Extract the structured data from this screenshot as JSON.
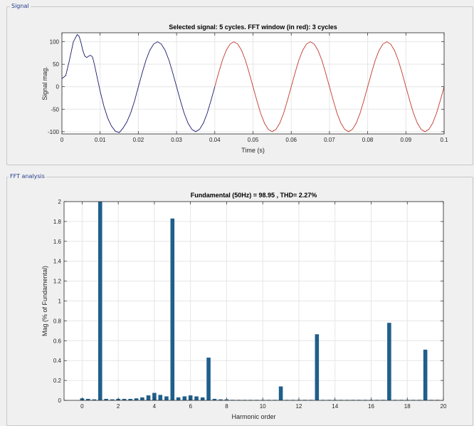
{
  "panels": {
    "signal_title": "Signal",
    "fft_title": "FFT analysis"
  },
  "chart_data": [
    {
      "type": "line",
      "title": "Selected signal: 5 cycles. FFT window (in red): 3 cycles",
      "xlabel": "Time (s)",
      "ylabel": "Signal mag.",
      "xlim": [
        0,
        0.1
      ],
      "ylim": [
        -105,
        120
      ],
      "xticks": [
        "0",
        "0.01",
        "0.02",
        "0.03",
        "0.04",
        "0.05",
        "0.06",
        "0.07",
        "0.08",
        "0.09",
        "0.1"
      ],
      "yticks": [
        "100",
        "50",
        "0",
        "-50",
        "-100"
      ],
      "grid": true,
      "series": [
        {
          "color": "#1a1a6e",
          "x": [
            0,
            0.001,
            0.002,
            0.003,
            0.004,
            0.0045,
            0.005,
            0.0055,
            0.006,
            0.0065,
            0.007,
            0.0075,
            0.008,
            0.0085,
            0.009,
            0.0095,
            0.01,
            0.011,
            0.012,
            0.013,
            0.014,
            0.015,
            0.016,
            0.017,
            0.018,
            0.019,
            0.02,
            0.021,
            0.022,
            0.023,
            0.024,
            0.025,
            0.026,
            0.027,
            0.028,
            0.029,
            0.03,
            0.031,
            0.032,
            0.033,
            0.034,
            0.035,
            0.036,
            0.037,
            0.038,
            0.039,
            0.04
          ],
          "y": [
            18,
            25,
            60,
            100,
            116,
            112,
            98,
            80,
            68,
            65,
            68,
            70,
            66,
            50,
            30,
            10,
            -10,
            -44,
            -70,
            -88,
            -99,
            -102,
            -92,
            -78,
            -58,
            -32,
            0,
            31,
            59,
            81,
            95,
            100,
            95,
            81,
            59,
            31,
            0,
            -31,
            -59,
            -81,
            -95,
            -100,
            -95,
            -81,
            -59,
            -31,
            0
          ]
        },
        {
          "color": "#c0392b",
          "x": [
            0.04,
            0.041,
            0.042,
            0.043,
            0.044,
            0.045,
            0.046,
            0.047,
            0.048,
            0.049,
            0.05,
            0.051,
            0.052,
            0.053,
            0.054,
            0.055,
            0.056,
            0.057,
            0.058,
            0.059,
            0.06,
            0.061,
            0.062,
            0.063,
            0.064,
            0.065,
            0.066,
            0.067,
            0.068,
            0.069,
            0.07,
            0.071,
            0.072,
            0.073,
            0.074,
            0.075,
            0.076,
            0.077,
            0.078,
            0.079,
            0.08,
            0.081,
            0.082,
            0.083,
            0.084,
            0.085,
            0.086,
            0.087,
            0.088,
            0.089,
            0.09,
            0.091,
            0.092,
            0.093,
            0.094,
            0.095,
            0.096,
            0.097,
            0.098,
            0.099,
            0.1
          ],
          "y": [
            0,
            31,
            59,
            81,
            95,
            100,
            95,
            81,
            59,
            31,
            0,
            -31,
            -59,
            -81,
            -95,
            -100,
            -95,
            -81,
            -59,
            -31,
            0,
            31,
            59,
            81,
            95,
            100,
            95,
            81,
            59,
            31,
            0,
            -31,
            -59,
            -81,
            -95,
            -100,
            -95,
            -81,
            -59,
            -31,
            0,
            31,
            59,
            81,
            95,
            100,
            95,
            81,
            59,
            31,
            0,
            -31,
            -59,
            -81,
            -95,
            -100,
            -95,
            -81,
            -59,
            -31,
            0
          ]
        }
      ]
    },
    {
      "type": "bar",
      "title": "Fundamental (50Hz) = 98.95 , THD= 2.27%",
      "xlabel": "Harmonic order",
      "ylabel": "Mag (% of Fundamental)",
      "xlim": [
        -1,
        20
      ],
      "ylim": [
        0,
        2
      ],
      "xticks": [
        "0",
        "2",
        "4",
        "6",
        "8",
        "10",
        "12",
        "14",
        "16",
        "18",
        "20"
      ],
      "yticks": [
        "2",
        "1.8",
        "1.6",
        "1.4",
        "1.2",
        "1",
        "0.8",
        "0.6",
        "0.4",
        "0.2",
        "0"
      ],
      "grid": true,
      "color": "#1f5f8b",
      "x": [
        0,
        0.33,
        0.67,
        1,
        1.33,
        1.67,
        2,
        2.33,
        2.67,
        3,
        3.33,
        3.67,
        4,
        4.33,
        4.67,
        5,
        5.33,
        5.67,
        6,
        6.33,
        6.67,
        7,
        7.33,
        7.67,
        8,
        8.33,
        8.67,
        9,
        9.33,
        9.67,
        10,
        10.33,
        10.67,
        11,
        11.33,
        11.67,
        12,
        12.33,
        12.67,
        13,
        13.33,
        13.67,
        14,
        14.33,
        14.67,
        15,
        15.33,
        15.67,
        16,
        16.33,
        16.67,
        17,
        17.33,
        17.67,
        18,
        18.33,
        18.67,
        19,
        19.33,
        19.67
      ],
      "values": [
        0.02,
        0.015,
        0.01,
        2.0,
        0.015,
        0.01,
        0.015,
        0.015,
        0.015,
        0.02,
        0.03,
        0.05,
        0.075,
        0.055,
        0.04,
        1.83,
        0.03,
        0.04,
        0.05,
        0.04,
        0.03,
        0.43,
        0.015,
        0.01,
        0.01,
        0.005,
        0.005,
        0.005,
        0.005,
        0.005,
        0.005,
        0.005,
        0.005,
        0.14,
        0.005,
        0.005,
        0.005,
        0.005,
        0.005,
        0.665,
        0.005,
        0.005,
        0.005,
        0.005,
        0.005,
        0.005,
        0.005,
        0.005,
        0.005,
        0.005,
        0.005,
        0.78,
        0.005,
        0.005,
        0.005,
        0.005,
        0.005,
        0.51,
        0.005,
        0.005
      ]
    }
  ]
}
